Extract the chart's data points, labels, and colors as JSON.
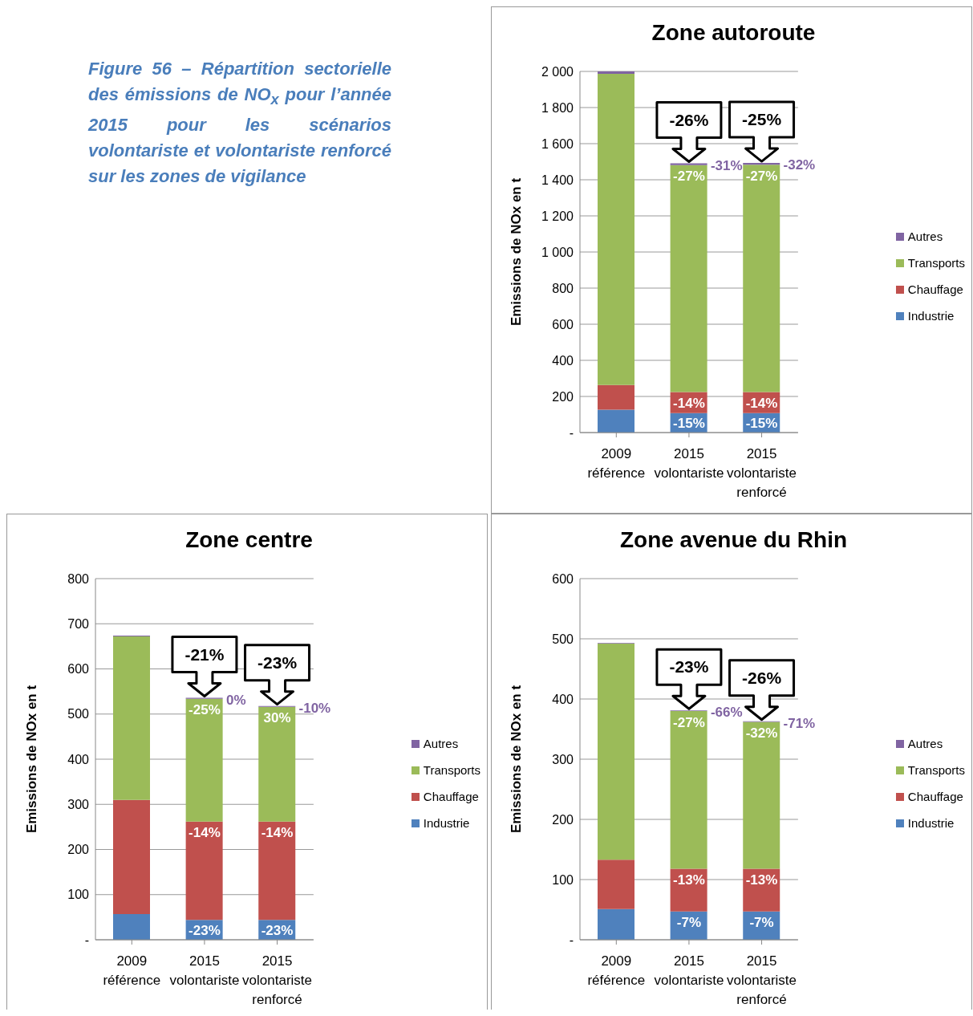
{
  "chart_data": [
    {
      "type": "bar",
      "stacked": true,
      "title": "Zone autoroute",
      "ylabel": "Emissions de NOx en t",
      "categories": [
        "2009 référence",
        "2015 volontariste",
        "2015 volontariste renforcé"
      ],
      "series": [
        {
          "name": "Industrie",
          "color": "#4f81bd",
          "values": [
            127,
            108,
            108
          ]
        },
        {
          "name": "Chauffage",
          "color": "#c0504d",
          "values": [
            136,
            117,
            117
          ]
        },
        {
          "name": "Transports",
          "color": "#9bbb59",
          "values": [
            1724,
            1256,
            1258
          ]
        },
        {
          "name": "Autres",
          "color": "#8064a2",
          "values": [
            13,
            10,
            10
          ]
        }
      ],
      "ylim": [
        0,
        2000
      ],
      "yticks": [
        {
          "value": 0,
          "label": "-"
        },
        200,
        400,
        600,
        800,
        {
          "value": 1000,
          "label": "1 000"
        },
        {
          "value": 1200,
          "label": "1 200"
        },
        {
          "value": 1400,
          "label": "1 400"
        },
        {
          "value": 1600,
          "label": "1 600"
        },
        {
          "value": 1800,
          "label": "1 800"
        },
        {
          "value": 2000,
          "label": "2 000"
        }
      ],
      "grid": "y",
      "legend": "right",
      "annotations": [
        "Figure 56 – Répartition sectorielle des émissions de NO$_{x}$ pour l’année 2015 pour les scénarios volontariste et volontariste renforcé sur les zones de vigilance",
        {
          "text": "-26%",
          "x": "2015 volontariste",
          "y": 1491
        },
        {
          "text": "-31%",
          "x": "2015 volontariste",
          "y": 1491
        },
        {
          "text": "-27%",
          "x": "2015 volontariste",
          "y": 1481
        },
        {
          "text": "-14%",
          "x": "2015 volontariste",
          "y": 225
        },
        {
          "text": "-15%",
          "x": "2015 volontariste",
          "y": 108
        },
        {
          "text": "-25%",
          "x": "2015 volontariste renforcé",
          "y": 1493
        },
        {
          "text": "-32%",
          "x": "2015 volontariste renforcé",
          "y": 1493
        },
        {
          "text": "-27%",
          "x": "2015 volontariste renforcé",
          "y": 1483
        },
        {
          "text": "-14%",
          "x": "2015 volontariste renforcé",
          "y": 225
        },
        {
          "text": "-15%",
          "x": "2015 volontariste renforcé",
          "y": 108
        }
      ]
    },
    {
      "type": "bar",
      "stacked": true,
      "title": "Zone centre",
      "ylabel": "Emissions de NOx en t",
      "categories": [
        "2009 référence",
        "2015 volontariste",
        "2015 volontariste renforcé"
      ],
      "series": [
        {
          "name": "Industrie",
          "color": "#4f81bd",
          "values": [
            57,
            44,
            44
          ]
        },
        {
          "name": "Chauffage",
          "color": "#c0504d",
          "values": [
            253,
            218,
            218
          ]
        },
        {
          "name": "Transports",
          "color": "#9bbb59",
          "values": [
            362,
            272,
            254
          ]
        },
        {
          "name": "Autres",
          "color": "#8064a2",
          "values": [
            2,
            2,
            2
          ]
        }
      ],
      "ylim": [
        0,
        800
      ],
      "yticks": [
        {
          "value": 0,
          "label": "-"
        },
        100,
        200,
        300,
        400,
        500,
        600,
        700,
        800
      ],
      "grid": "y",
      "legend": "right",
      "annotations": [
        {
          "text": "-21%",
          "x": "2015 volontariste",
          "y": 536
        },
        {
          "text": "0%",
          "x": "2015 volontariste",
          "y": 536
        },
        {
          "text": "-25%",
          "x": "2015 volontariste",
          "y": 534
        },
        {
          "text": "-14%",
          "x": "2015 volontariste",
          "y": 262
        },
        {
          "text": "-23%",
          "x": "2015 volontariste",
          "y": 44
        },
        {
          "text": "-23%",
          "x": "2015 volontariste renforcé",
          "y": 518
        },
        {
          "text": "-10%",
          "x": "2015 volontariste renforcé",
          "y": 518
        },
        {
          "text": "30%",
          "x": "2015 volontariste renforcé",
          "y": 516
        },
        {
          "text": "-14%",
          "x": "2015 volontariste renforcé",
          "y": 262
        },
        {
          "text": "-23%",
          "x": "2015 volontariste renforcé",
          "y": 44
        }
      ]
    },
    {
      "type": "bar",
      "stacked": true,
      "title": "Zone avenue du Rhin",
      "ylabel": "Emissions de NOx en t",
      "categories": [
        "2009 référence",
        "2015 volontariste",
        "2015 volontariste renforcé"
      ],
      "series": [
        {
          "name": "Industrie",
          "color": "#4f81bd",
          "values": [
            51,
            47,
            47
          ]
        },
        {
          "name": "Chauffage",
          "color": "#c0504d",
          "values": [
            82,
            71,
            71
          ]
        },
        {
          "name": "Transports",
          "color": "#9bbb59",
          "values": [
            359,
            262,
            244
          ]
        },
        {
          "name": "Autres",
          "color": "#8064a2",
          "values": [
            1,
            1,
            1
          ]
        }
      ],
      "ylim": [
        0,
        600
      ],
      "yticks": [
        {
          "value": 0,
          "label": "-"
        },
        100,
        200,
        300,
        400,
        500,
        600
      ],
      "grid": "y",
      "legend": "right",
      "annotations": [
        {
          "text": "-23%",
          "x": "2015 volontariste",
          "y": 381
        },
        {
          "text": "-66%",
          "x": "2015 volontariste",
          "y": 381
        },
        {
          "text": "-27%",
          "x": "2015 volontariste",
          "y": 380
        },
        {
          "text": "-13%",
          "x": "2015 volontariste",
          "y": 118
        },
        {
          "text": "-7%",
          "x": "2015 volontariste",
          "y": 47
        },
        {
          "text": "-26%",
          "x": "2015 volontariste renforcé",
          "y": 363
        },
        {
          "text": "-71%",
          "x": "2015 volontariste renforcé",
          "y": 363
        },
        {
          "text": "-32%",
          "x": "2015 volontariste renforcé",
          "y": 362
        },
        {
          "text": "-13%",
          "x": "2015 volontariste renforcé",
          "y": 118
        },
        {
          "text": "-7%",
          "x": "2015 volontariste renforcé",
          "y": 47
        }
      ]
    }
  ]
}
